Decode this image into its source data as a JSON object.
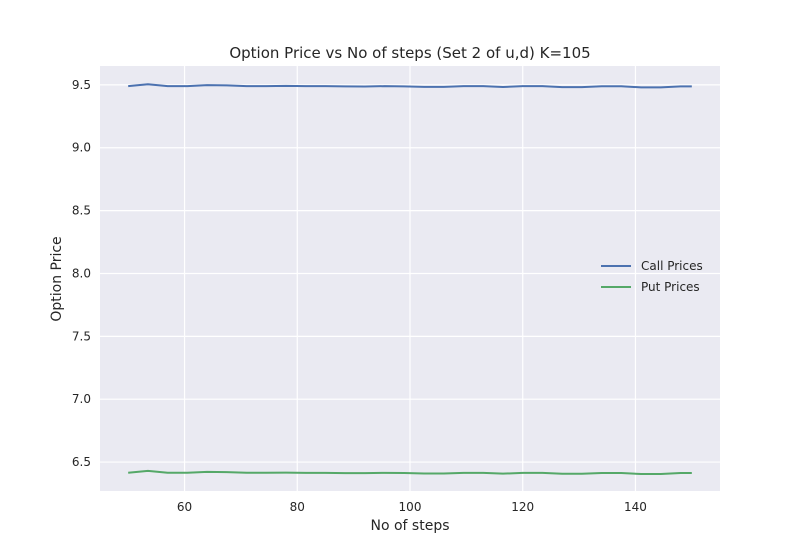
{
  "chart_data": {
    "type": "line",
    "title": "Option Price vs No of steps (Set 2 of u,d) K=105",
    "xlabel": "No of steps",
    "ylabel": "Option Price",
    "xlim": [
      45,
      155
    ],
    "ylim": [
      6.27,
      9.65
    ],
    "xticks": [
      60,
      80,
      100,
      120,
      140
    ],
    "yticks": [
      6.5,
      7.0,
      7.5,
      8.0,
      8.5,
      9.0,
      9.5
    ],
    "ytick_labels": [
      "6.5",
      "7.0",
      "7.5",
      "8.0",
      "8.5",
      "9.0",
      "9.5"
    ],
    "grid": true,
    "legend_position": "center-right",
    "background": "#eaeaf2",
    "x": [
      50,
      53.5,
      57,
      60.5,
      64,
      67.5,
      71,
      74.5,
      78,
      81.5,
      85,
      88.5,
      92,
      95.5,
      99,
      102.5,
      106,
      109.5,
      113,
      116.5,
      120,
      123.5,
      127,
      130.5,
      134,
      137.5,
      141,
      144.5,
      148,
      150
    ],
    "series": [
      {
        "name": "Call Prices",
        "color": "#4c72b0",
        "values": [
          9.49,
          9.505,
          9.49,
          9.49,
          9.498,
          9.496,
          9.49,
          9.49,
          9.492,
          9.49,
          9.49,
          9.488,
          9.487,
          9.49,
          9.488,
          9.484,
          9.484,
          9.49,
          9.49,
          9.483,
          9.49,
          9.49,
          9.482,
          9.482,
          9.489,
          9.489,
          9.48,
          9.48,
          9.488,
          9.488
        ]
      },
      {
        "name": "Put Prices",
        "color": "#55a868",
        "values": [
          6.415,
          6.43,
          6.415,
          6.415,
          6.422,
          6.42,
          6.415,
          6.415,
          6.416,
          6.414,
          6.414,
          6.412,
          6.412,
          6.414,
          6.413,
          6.409,
          6.409,
          6.414,
          6.414,
          6.408,
          6.414,
          6.414,
          6.407,
          6.407,
          6.413,
          6.413,
          6.405,
          6.405,
          6.413,
          6.413
        ]
      }
    ]
  }
}
